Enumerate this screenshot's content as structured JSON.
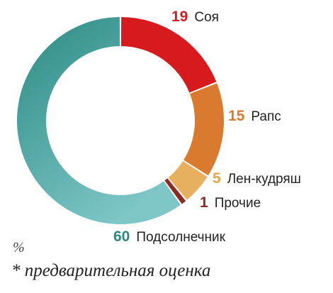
{
  "chart_data": {
    "type": "pie",
    "style": "donut",
    "unit": "%",
    "footnote": "* предварительная оценка",
    "slices": [
      {
        "label": "Соя",
        "value": 19,
        "color": "#d71a1e",
        "num_color": "#d71a1e"
      },
      {
        "label": "Рапс",
        "value": 15,
        "color": "#d97a2e",
        "num_color": "#d97a2e"
      },
      {
        "label": "Лен-кудряш",
        "value": 5,
        "color": "#e8b05e",
        "num_color": "#e8a640"
      },
      {
        "label": "Прочие",
        "value": 1,
        "color": "#8e2a24",
        "num_color": "#8e2a24"
      },
      {
        "label": "Подсолнечник",
        "value": 60,
        "color_start": "#2b8a84",
        "color_end": "#7ec6c8",
        "num_color": "#2a8a86"
      }
    ]
  }
}
